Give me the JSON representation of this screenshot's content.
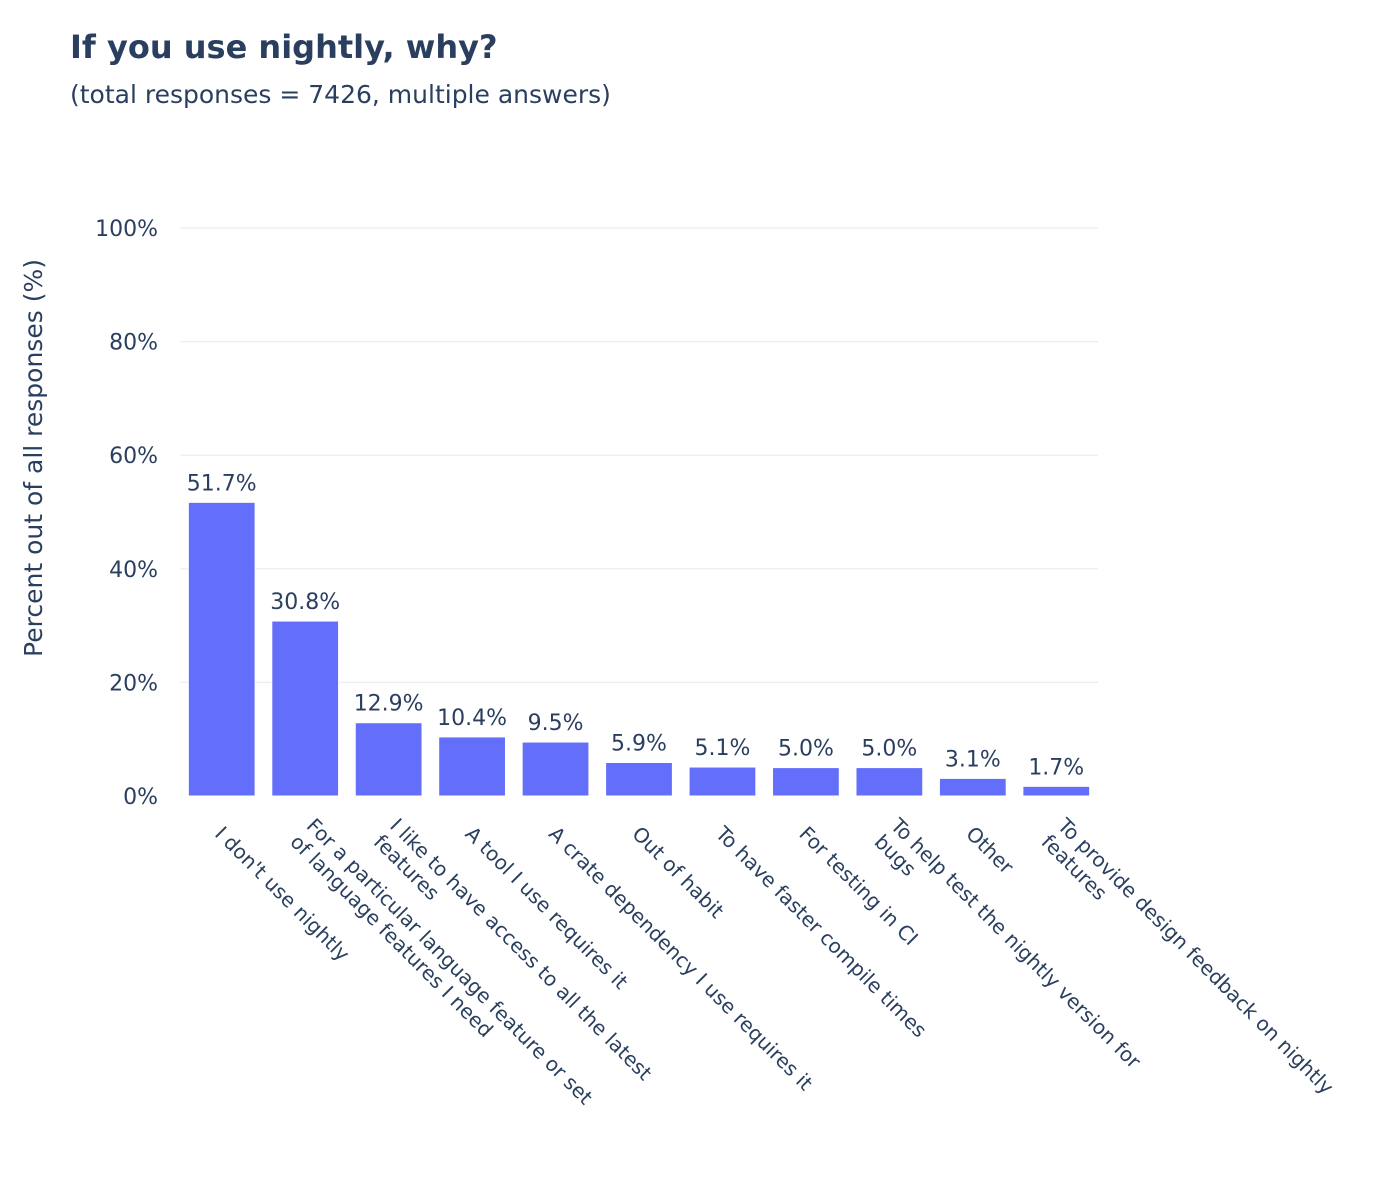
{
  "chart_data": {
    "type": "bar",
    "title": "If you use nightly, why?",
    "subtitle": "(total responses = 7426, multiple answers)",
    "xlabel": "",
    "ylabel": "Percent out of all responses (%)",
    "ylim": [
      0,
      100
    ],
    "yticks": [
      "0%",
      "20%",
      "40%",
      "60%",
      "80%",
      "100%"
    ],
    "grid": true,
    "bar_color": "#636efa",
    "categories": [
      [
        "I don't use nightly"
      ],
      [
        "For a particular language feature or set",
        "of language features I need"
      ],
      [
        "I like to have access to all the latest",
        "features"
      ],
      [
        "A tool I use requires it"
      ],
      [
        "A crate dependency I use requires it"
      ],
      [
        "Out of habit"
      ],
      [
        "To have faster compile times"
      ],
      [
        "For testing in CI"
      ],
      [
        "To help test the nightly version for",
        "bugs"
      ],
      [
        "Other"
      ],
      [
        "To provide design feedback on nightly",
        "features"
      ]
    ],
    "values": [
      51.7,
      30.8,
      12.9,
      10.4,
      9.5,
      5.9,
      5.1,
      5.0,
      5.0,
      3.1,
      1.7
    ],
    "value_labels": [
      "51.7%",
      "30.8%",
      "12.9%",
      "10.4%",
      "9.5%",
      "5.9%",
      "5.1%",
      "5.0%",
      "5.0%",
      "3.1%",
      "1.7%"
    ]
  }
}
